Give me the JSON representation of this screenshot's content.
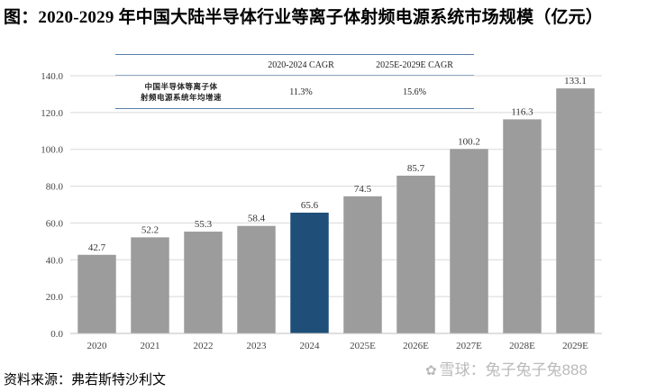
{
  "title": "图：2020-2029 年中国大陆半导体行业等离子体射频电源系统市场规模（亿元）",
  "source": "资料来源：弗若斯特沙利文",
  "watermark": {
    "icon": "snowball-logo-icon",
    "text": "雪球：兔子兔子兔888"
  },
  "cagr_table": {
    "header_empty": "",
    "columns": [
      "2020-2024 CAGR",
      "2025E-2029E CAGR"
    ],
    "row_label": [
      "中国半导体等离子体",
      "射频电源系统年均增速"
    ],
    "values": [
      "11.3%",
      "15.6%"
    ]
  },
  "chart_data": {
    "type": "bar",
    "title": "图：2020-2029 年中国大陆半导体行业等离子体射频电源系统市场规模（亿元）",
    "categories": [
      "2020",
      "2021",
      "2022",
      "2023",
      "2024",
      "2025E",
      "2026E",
      "2027E",
      "2028E",
      "2029E"
    ],
    "values": [
      42.7,
      52.2,
      55.3,
      58.4,
      65.6,
      74.5,
      85.7,
      100.2,
      116.3,
      133.1
    ],
    "data_labels": [
      "42.7",
      "52.2",
      "55.3",
      "58.4",
      "65.6",
      "74.5",
      "85.7",
      "100.2",
      "116.3",
      "133.1"
    ],
    "colors": [
      "#9c9c9c",
      "#9c9c9c",
      "#9c9c9c",
      "#9c9c9c",
      "#1f4e79",
      "#9c9c9c",
      "#9c9c9c",
      "#9c9c9c",
      "#9c9c9c",
      "#9c9c9c"
    ],
    "ylim": [
      0,
      140
    ],
    "yticks": [
      "0.0",
      "20.0",
      "40.0",
      "60.0",
      "80.0",
      "100.0",
      "120.0",
      "140.0"
    ],
    "ytick_values": [
      0,
      20,
      40,
      60,
      80,
      100,
      120,
      140
    ],
    "xlabel": "",
    "ylabel": "",
    "grid": true,
    "legend": "none"
  }
}
